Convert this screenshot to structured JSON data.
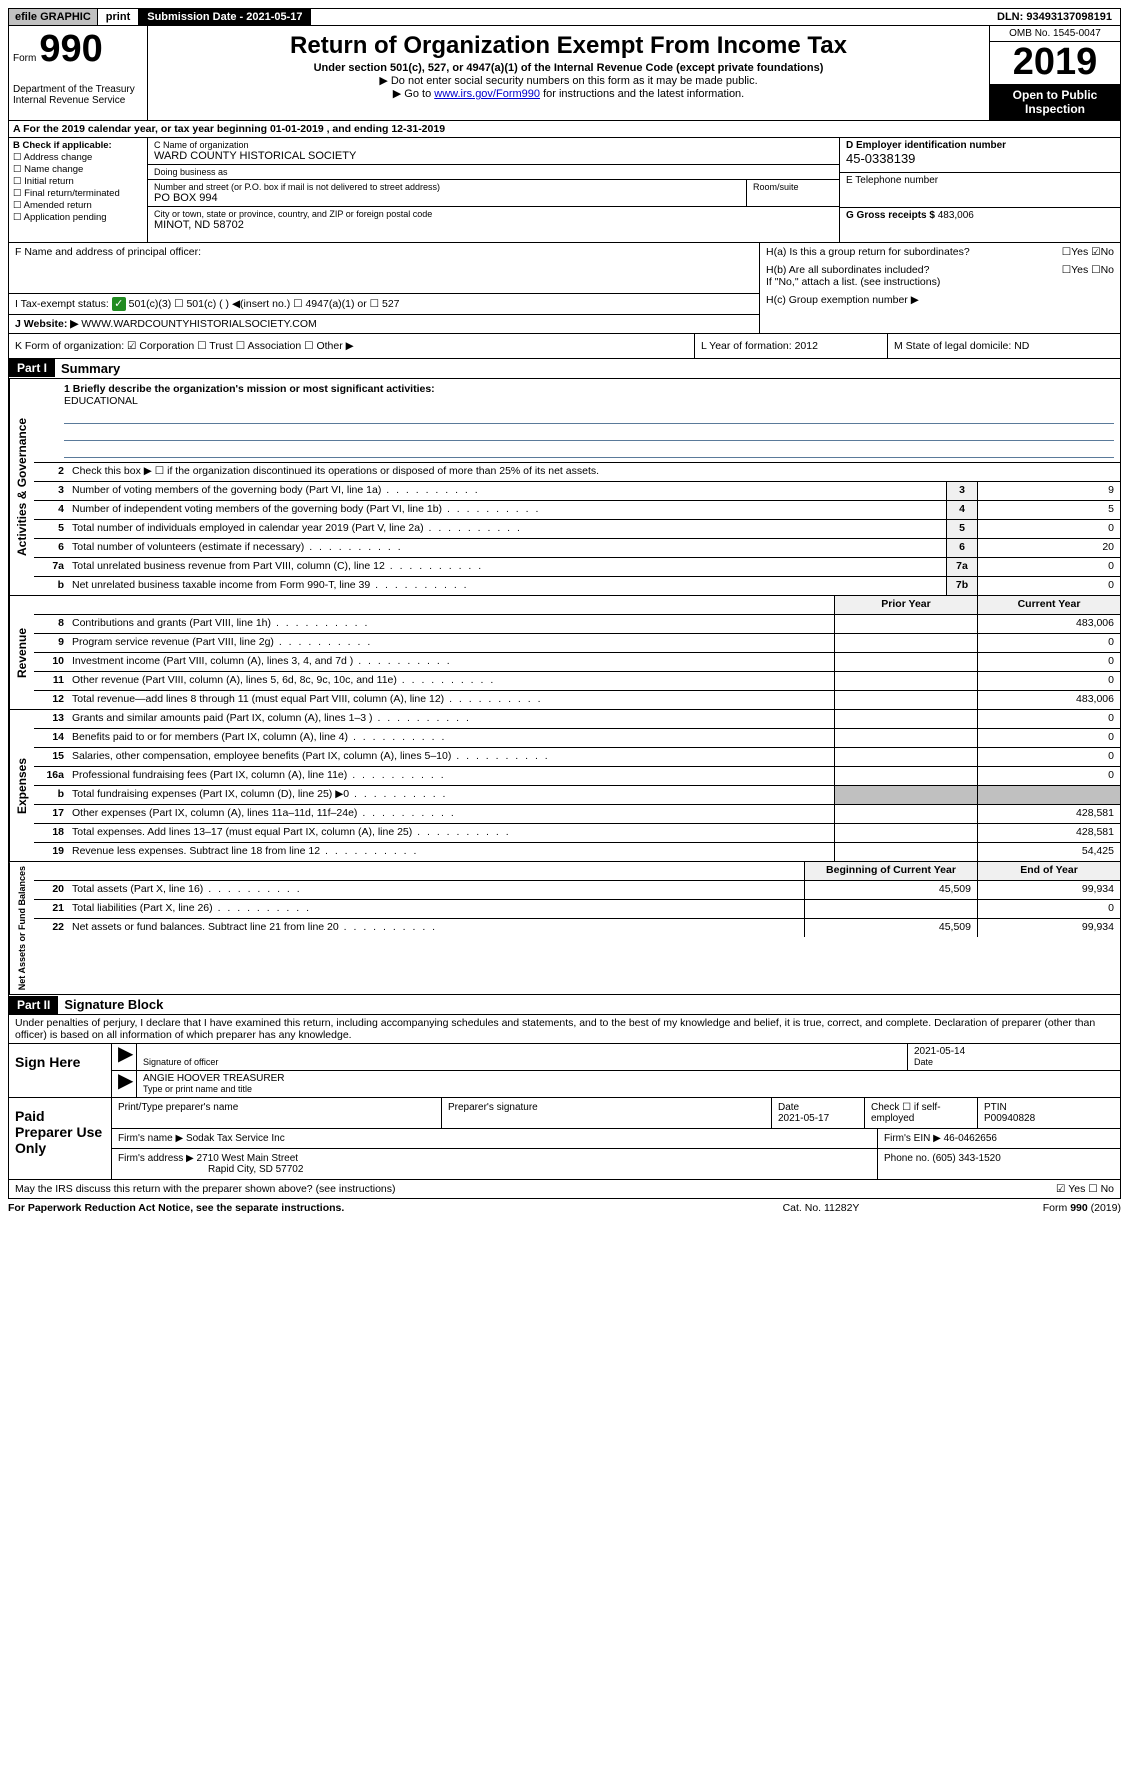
{
  "topbar": {
    "efile": "efile GRAPHIC",
    "print": "print",
    "submission": "Submission Date - 2021-05-17",
    "dln": "DLN: 93493137098191"
  },
  "header": {
    "form_prefix": "Form",
    "form_number": "990",
    "dept": "Department of the Treasury\nInternal Revenue Service",
    "title": "Return of Organization Exempt From Income Tax",
    "subtitle": "Under section 501(c), 527, or 4947(a)(1) of the Internal Revenue Code (except private foundations)",
    "note1": "▶ Do not enter social security numbers on this form as it may be made public.",
    "note2_pre": "▶ Go to ",
    "note2_link": "www.irs.gov/Form990",
    "note2_post": " for instructions and the latest information.",
    "omb": "OMB No. 1545-0047",
    "year": "2019",
    "open": "Open to Public Inspection"
  },
  "period": "A For the 2019 calendar year, or tax year beginning 01-01-2019   , and ending 12-31-2019",
  "colB": {
    "label": "B Check if applicable:",
    "items": [
      "☐ Address change",
      "☐ Name change",
      "☐ Initial return",
      "☐ Final return/terminated",
      "☐ Amended return",
      "☐ Application pending"
    ]
  },
  "colC": {
    "name_label": "C Name of organization",
    "name": "WARD COUNTY HISTORICAL SOCIETY",
    "dba_label": "Doing business as",
    "street_label": "Number and street (or P.O. box if mail is not delivered to street address)",
    "street": "PO BOX 994",
    "room_label": "Room/suite",
    "city_label": "City or town, state or province, country, and ZIP or foreign postal code",
    "city": "MINOT, ND  58702"
  },
  "colD": {
    "ein_label": "D Employer identification number",
    "ein": "45-0338139",
    "phone_label": "E Telephone number",
    "gross_label": "G Gross receipts $",
    "gross": "483,006"
  },
  "rowF": {
    "label": "F  Name and address of principal officer:"
  },
  "rowH": {
    "ha": "H(a)  Is this a group return for subordinates?",
    "ha_ans": "☐Yes ☑No",
    "hb": "H(b)  Are all subordinates included?",
    "hb_ans": "☐Yes ☐No",
    "hb_note": "If \"No,\" attach a list. (see instructions)",
    "hc": "H(c)  Group exemption number ▶"
  },
  "rowI": {
    "label": "I   Tax-exempt status:",
    "opts": "501(c)(3)   ☐  501(c) (  ) ◀(insert no.)   ☐ 4947(a)(1) or  ☐  527"
  },
  "rowJ": {
    "label": "J   Website: ▶",
    "val": "WWW.WARDCOUNTYHISTORIALSOCIETY.COM"
  },
  "rowK": {
    "left": "K Form of organization:  ☑ Corporation ☐ Trust ☐ Association ☐ Other ▶",
    "mid": "L Year of formation: 2012",
    "right": "M State of legal domicile: ND"
  },
  "part1": {
    "hdr": "Part I",
    "title": "Summary",
    "q1": "1  Briefly describe the organization's mission or most significant activities:",
    "q1val": "EDUCATIONAL",
    "q2": "Check this box ▶ ☐  if the organization discontinued its operations or disposed of more than 25% of its net assets."
  },
  "gov_rows": [
    {
      "n": "3",
      "d": "Number of voting members of the governing body (Part VI, line 1a)",
      "box": "3",
      "v": "9"
    },
    {
      "n": "4",
      "d": "Number of independent voting members of the governing body (Part VI, line 1b)",
      "box": "4",
      "v": "5"
    },
    {
      "n": "5",
      "d": "Total number of individuals employed in calendar year 2019 (Part V, line 2a)",
      "box": "5",
      "v": "0"
    },
    {
      "n": "6",
      "d": "Total number of volunteers (estimate if necessary)",
      "box": "6",
      "v": "20"
    },
    {
      "n": "7a",
      "d": "Total unrelated business revenue from Part VIII, column (C), line 12",
      "box": "7a",
      "v": "0"
    },
    {
      "n": "b",
      "d": "Net unrelated business taxable income from Form 990-T, line 39",
      "box": "7b",
      "v": "0"
    }
  ],
  "rev_hdr": {
    "prior": "Prior Year",
    "curr": "Current Year"
  },
  "rev_rows": [
    {
      "n": "8",
      "d": "Contributions and grants (Part VIII, line 1h)",
      "p": "",
      "c": "483,006"
    },
    {
      "n": "9",
      "d": "Program service revenue (Part VIII, line 2g)",
      "p": "",
      "c": "0"
    },
    {
      "n": "10",
      "d": "Investment income (Part VIII, column (A), lines 3, 4, and 7d )",
      "p": "",
      "c": "0"
    },
    {
      "n": "11",
      "d": "Other revenue (Part VIII, column (A), lines 5, 6d, 8c, 9c, 10c, and 11e)",
      "p": "",
      "c": "0"
    },
    {
      "n": "12",
      "d": "Total revenue—add lines 8 through 11 (must equal Part VIII, column (A), line 12)",
      "p": "",
      "c": "483,006"
    }
  ],
  "exp_rows": [
    {
      "n": "13",
      "d": "Grants and similar amounts paid (Part IX, column (A), lines 1–3 )",
      "p": "",
      "c": "0"
    },
    {
      "n": "14",
      "d": "Benefits paid to or for members (Part IX, column (A), line 4)",
      "p": "",
      "c": "0"
    },
    {
      "n": "15",
      "d": "Salaries, other compensation, employee benefits (Part IX, column (A), lines 5–10)",
      "p": "",
      "c": "0"
    },
    {
      "n": "16a",
      "d": "Professional fundraising fees (Part IX, column (A), line 11e)",
      "p": "",
      "c": "0"
    },
    {
      "n": "b",
      "d": "Total fundraising expenses (Part IX, column (D), line 25) ▶0",
      "p": "—",
      "c": "—"
    },
    {
      "n": "17",
      "d": "Other expenses (Part IX, column (A), lines 11a–11d, 11f–24e)",
      "p": "",
      "c": "428,581"
    },
    {
      "n": "18",
      "d": "Total expenses. Add lines 13–17 (must equal Part IX, column (A), line 25)",
      "p": "",
      "c": "428,581"
    },
    {
      "n": "19",
      "d": "Revenue less expenses. Subtract line 18 from line 12",
      "p": "",
      "c": "54,425"
    }
  ],
  "net_hdr": {
    "prior": "Beginning of Current Year",
    "curr": "End of Year"
  },
  "net_rows": [
    {
      "n": "20",
      "d": "Total assets (Part X, line 16)",
      "p": "45,509",
      "c": "99,934"
    },
    {
      "n": "21",
      "d": "Total liabilities (Part X, line 26)",
      "p": "",
      "c": "0"
    },
    {
      "n": "22",
      "d": "Net assets or fund balances. Subtract line 21 from line 20",
      "p": "45,509",
      "c": "99,934"
    }
  ],
  "sidelabels": {
    "gov": "Activities & Governance",
    "rev": "Revenue",
    "exp": "Expenses",
    "net": "Net Assets or Fund Balances"
  },
  "part2": {
    "hdr": "Part II",
    "title": "Signature Block",
    "perjury": "Under penalties of perjury, I declare that I have examined this return, including accompanying schedules and statements, and to the best of my knowledge and belief, it is true, correct, and complete. Declaration of preparer (other than officer) is based on all information of which preparer has any knowledge."
  },
  "sign": {
    "here": "Sign Here",
    "sig_label": "Signature of officer",
    "date": "2021-05-14",
    "date_label": "Date",
    "name": "ANGIE HOOVER TREASURER",
    "name_label": "Type or print name and title"
  },
  "paid": {
    "label": "Paid Preparer Use Only",
    "h1": "Print/Type preparer's name",
    "h2": "Preparer's signature",
    "h3": "Date",
    "h3v": "2021-05-17",
    "h4": "Check ☐ if self-employed",
    "h5": "PTIN",
    "h5v": "P00940828",
    "firm_label": "Firm's name    ▶",
    "firm": "Sodak Tax Service Inc",
    "ein_label": "Firm's EIN ▶",
    "ein": "46-0462656",
    "addr_label": "Firm's address ▶",
    "addr1": "2710 West Main Street",
    "addr2": "Rapid City, SD  57702",
    "phone_label": "Phone no.",
    "phone": "(605) 343-1520"
  },
  "discuss": {
    "q": "May the IRS discuss this return with the preparer shown above? (see instructions)",
    "ans": "☑ Yes  ☐ No"
  },
  "footer": {
    "l": "For Paperwork Reduction Act Notice, see the separate instructions.",
    "m": "Cat. No. 11282Y",
    "r": "Form 990 (2019)"
  }
}
